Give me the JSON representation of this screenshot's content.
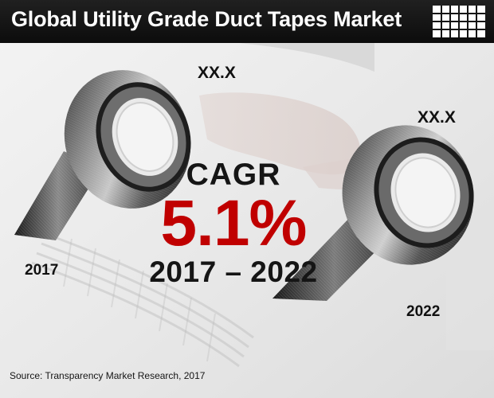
{
  "header": {
    "title": "Global Utility Grade Duct Tapes Market"
  },
  "tapes": {
    "left": {
      "year": "2017",
      "value": "XX.X"
    },
    "right": {
      "year": "2022",
      "value": "XX.X"
    }
  },
  "cagr": {
    "label": "CAGR",
    "value": "5.1%",
    "period": "2017 – 2022"
  },
  "footer": {
    "source": "Source: Transparency Market Research, 2017"
  },
  "colors": {
    "title_bar": "#141414",
    "cagr_value": "#c00000",
    "text": "#151515"
  },
  "icons": {
    "title_decoration": "grid-icon"
  }
}
